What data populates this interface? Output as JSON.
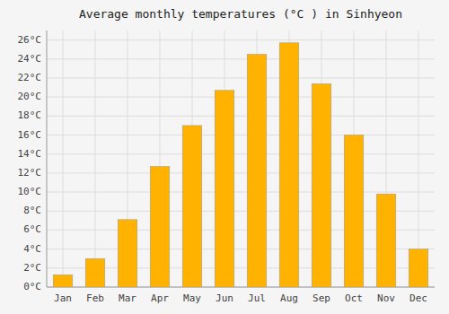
{
  "chart_data": {
    "type": "bar",
    "title": "Average monthly temperatures (°C ) in Sinhyeon",
    "categories": [
      "Jan",
      "Feb",
      "Mar",
      "Apr",
      "May",
      "Jun",
      "Jul",
      "Aug",
      "Sep",
      "Oct",
      "Nov",
      "Dec"
    ],
    "values": [
      1.3,
      3.0,
      7.1,
      12.7,
      17.0,
      20.7,
      24.5,
      25.7,
      21.4,
      16.0,
      9.8,
      4.0
    ],
    "color": "#FFB300",
    "ylim": [
      0,
      27
    ],
    "yticks": [
      {
        "value": 0,
        "label": "0°C"
      },
      {
        "value": 2,
        "label": "2°C"
      },
      {
        "value": 4,
        "label": "4°C"
      },
      {
        "value": 6,
        "label": "6°C"
      },
      {
        "value": 8,
        "label": "8°C"
      },
      {
        "value": 10,
        "label": "10°C"
      },
      {
        "value": 12,
        "label": "12°C"
      },
      {
        "value": 14,
        "label": "14°C"
      },
      {
        "value": 16,
        "label": "16°C"
      },
      {
        "value": 18,
        "label": "18°C"
      },
      {
        "value": 20,
        "label": "20°C"
      },
      {
        "value": 22,
        "label": "22°C"
      },
      {
        "value": 24,
        "label": "24°C"
      },
      {
        "value": 26,
        "label": "26°C"
      }
    ],
    "grid": true
  }
}
